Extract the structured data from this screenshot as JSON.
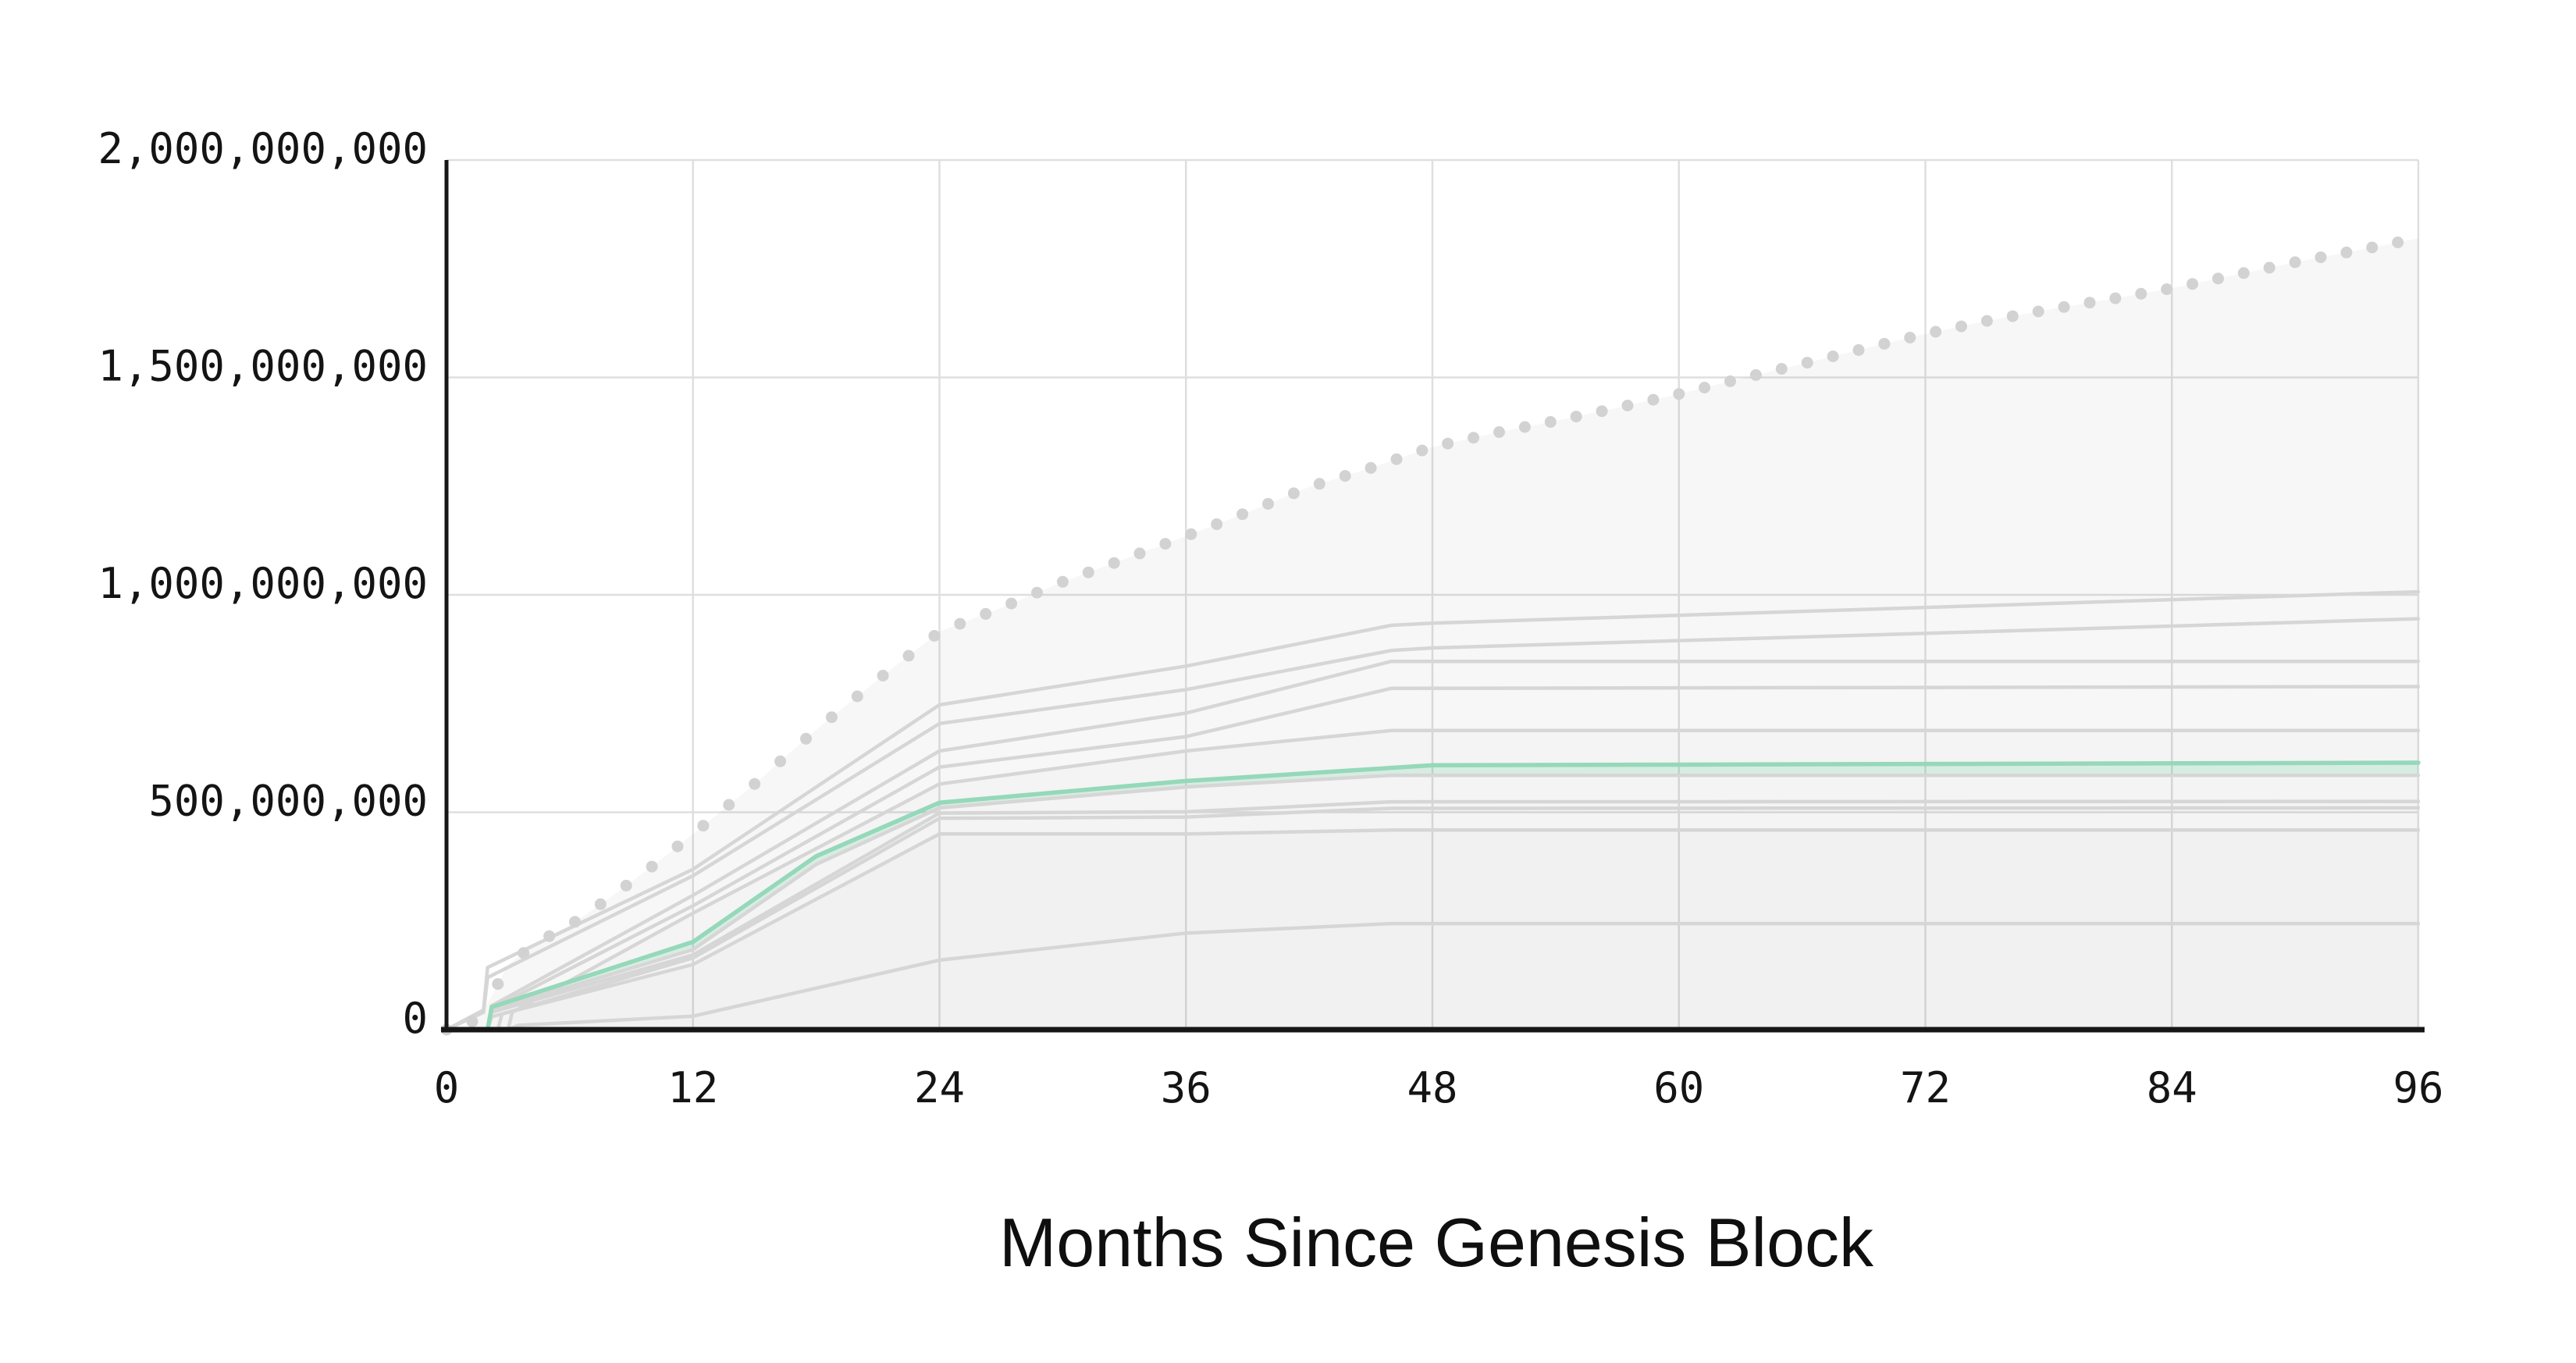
{
  "page": {
    "background": "#ffffff"
  },
  "colors": {
    "background": "#ffffff",
    "grid": "#dfdfdf",
    "axis": "#161616",
    "tick_text": "#141414",
    "title_text": "#0f0f0f",
    "gray_line": "#d6d6d6",
    "dot": "#d2d2d2",
    "highlight_line": "#95d8ba",
    "highlight_band": "rgba(46,190,120,0.14)",
    "area_fill": "rgba(0,0,0,0.032)",
    "area_overlay": "rgba(0,0,0,0.012)"
  },
  "chart_data": {
    "type": "line",
    "title": "",
    "xlabel": "Months Since Genesis Block",
    "ylabel": "",
    "xlim": [
      0,
      96
    ],
    "ylim": [
      0,
      2000000000
    ],
    "grid": true,
    "legend": "none",
    "value_unit": "tokens (series point values in millions)",
    "x_ticks": {
      "values": [
        0,
        12,
        24,
        36,
        48,
        60,
        72,
        84,
        96
      ],
      "labels": [
        "0",
        "12",
        "24",
        "36",
        "48",
        "60",
        "72",
        "84",
        "96"
      ]
    },
    "y_ticks": {
      "values_millions": [
        0,
        500,
        1000,
        1500,
        2000
      ],
      "labels": [
        "0",
        "500,000,000",
        "1,000,000,000",
        "1,500,000,000",
        "2,000,000,000"
      ]
    },
    "series": [
      {
        "id": "max_supply_envelope",
        "style": "dotted",
        "marker_every_months": 1.25,
        "points_millions": [
          [
            0,
            0
          ],
          [
            1,
            5
          ],
          [
            2,
            60
          ],
          [
            3,
            150
          ],
          [
            4,
            185
          ],
          [
            5,
            215
          ],
          [
            6,
            240
          ],
          [
            7,
            272
          ],
          [
            8,
            305
          ],
          [
            9,
            340
          ],
          [
            10,
            375
          ],
          [
            11,
            412
          ],
          [
            12,
            450
          ],
          [
            15,
            565
          ],
          [
            18,
            690
          ],
          [
            21,
            805
          ],
          [
            24,
            915
          ],
          [
            27,
            970
          ],
          [
            30,
            1030
          ],
          [
            33,
            1082
          ],
          [
            36,
            1135
          ],
          [
            39,
            1190
          ],
          [
            42,
            1248
          ],
          [
            45,
            1292
          ],
          [
            48,
            1340
          ],
          [
            51,
            1372
          ],
          [
            54,
            1400
          ],
          [
            57,
            1430
          ],
          [
            60,
            1462
          ],
          [
            63,
            1497
          ],
          [
            66,
            1531
          ],
          [
            69,
            1566
          ],
          [
            72,
            1600
          ],
          [
            75,
            1630
          ],
          [
            78,
            1656
          ],
          [
            81,
            1680
          ],
          [
            84,
            1705
          ],
          [
            87,
            1735
          ],
          [
            90,
            1765
          ],
          [
            93,
            1792
          ],
          [
            96,
            1820
          ]
        ]
      },
      {
        "id": "supply_curve_01",
        "style": "line",
        "points_millions": [
          [
            0,
            0
          ],
          [
            1.8,
            45
          ],
          [
            2,
            143
          ],
          [
            12,
            369
          ],
          [
            24,
            747
          ],
          [
            36,
            836
          ],
          [
            46,
            930
          ],
          [
            48,
            935
          ],
          [
            96,
            1007
          ]
        ]
      },
      {
        "id": "supply_curve_02",
        "style": "line",
        "points_millions": [
          [
            0,
            0
          ],
          [
            1.8,
            40
          ],
          [
            2,
            120
          ],
          [
            12,
            354
          ],
          [
            24,
            704
          ],
          [
            36,
            782
          ],
          [
            46,
            872
          ],
          [
            48,
            878
          ],
          [
            96,
            945
          ]
        ]
      },
      {
        "id": "supply_curve_03",
        "style": "line",
        "points_millions": [
          [
            0,
            0
          ],
          [
            2,
            0
          ],
          [
            2.2,
            55
          ],
          [
            12,
            309
          ],
          [
            24,
            641
          ],
          [
            36,
            728
          ],
          [
            46,
            847
          ],
          [
            96,
            847
          ]
        ]
      },
      {
        "id": "supply_curve_04",
        "style": "line",
        "points_millions": [
          [
            0,
            0
          ],
          [
            2,
            0
          ],
          [
            2.2,
            48
          ],
          [
            12,
            285
          ],
          [
            24,
            604
          ],
          [
            36,
            674
          ],
          [
            46,
            785
          ],
          [
            96,
            789
          ]
        ]
      },
      {
        "id": "supply_curve_05",
        "style": "line",
        "overlay_fill": true,
        "points_millions": [
          [
            0,
            0
          ],
          [
            3,
            0
          ],
          [
            3.2,
            40
          ],
          [
            12,
            268
          ],
          [
            24,
            565
          ],
          [
            36,
            641
          ],
          [
            46,
            688
          ],
          [
            96,
            688
          ]
        ]
      },
      {
        "id": "highlighted_supply_curve",
        "style": "line_highlight",
        "band_to": "supply_curve_07",
        "points_millions": [
          [
            0,
            0
          ],
          [
            2,
            0
          ],
          [
            2.2,
            52
          ],
          [
            12,
            202
          ],
          [
            18,
            399
          ],
          [
            24,
            522
          ],
          [
            36,
            572
          ],
          [
            48,
            608
          ],
          [
            96,
            614
          ]
        ]
      },
      {
        "id": "supply_curve_07",
        "style": "line",
        "points_millions": [
          [
            0,
            0
          ],
          [
            2,
            0
          ],
          [
            2.2,
            45
          ],
          [
            12,
            184
          ],
          [
            18,
            380
          ],
          [
            24,
            510
          ],
          [
            36,
            558
          ],
          [
            46,
            585
          ],
          [
            96,
            585
          ]
        ]
      },
      {
        "id": "supply_curve_08",
        "style": "line",
        "points_millions": [
          [
            0,
            0
          ],
          [
            2,
            0
          ],
          [
            2.2,
            40
          ],
          [
            12,
            172
          ],
          [
            24,
            498
          ],
          [
            36,
            501
          ],
          [
            46,
            524
          ],
          [
            96,
            525
          ]
        ]
      },
      {
        "id": "supply_curve_09",
        "style": "line",
        "points_millions": [
          [
            0,
            0
          ],
          [
            2.5,
            0
          ],
          [
            2.7,
            36
          ],
          [
            12,
            165
          ],
          [
            24,
            486
          ],
          [
            36,
            489
          ],
          [
            46,
            509
          ],
          [
            96,
            510
          ]
        ]
      },
      {
        "id": "supply_curve_10",
        "style": "line",
        "overlay_fill": true,
        "points_millions": [
          [
            0,
            0
          ],
          [
            2,
            0
          ],
          [
            2.2,
            30
          ],
          [
            12,
            150
          ],
          [
            24,
            450
          ],
          [
            36,
            450
          ],
          [
            46,
            459
          ],
          [
            96,
            459
          ]
        ]
      },
      {
        "id": "supply_curve_11",
        "style": "line",
        "points_millions": [
          [
            0,
            0
          ],
          [
            3,
            0
          ],
          [
            3.5,
            10
          ],
          [
            12,
            31
          ],
          [
            24,
            160
          ],
          [
            36,
            222
          ],
          [
            46,
            244
          ],
          [
            96,
            244
          ]
        ]
      }
    ]
  }
}
